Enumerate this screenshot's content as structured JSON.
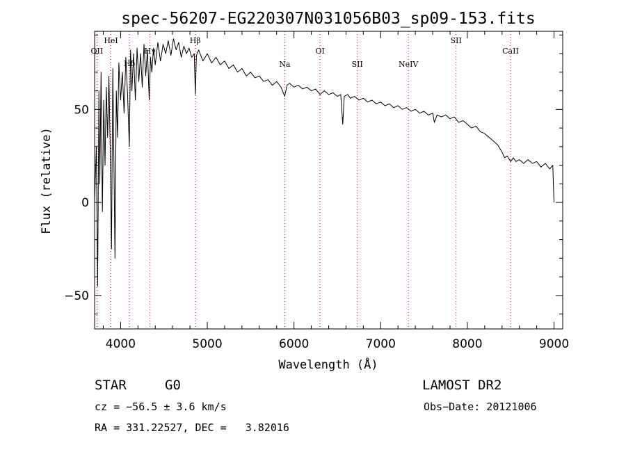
{
  "chart_data": {
    "type": "line",
    "title": "spec-56207-EG220307N031056B03_sp09-153.fits",
    "xlabel": "Wavelength (Å)",
    "ylabel": "Flux (relative)",
    "xlim": [
      3700,
      9100
    ],
    "ylim": [
      -68,
      92
    ],
    "xticks": [
      4000,
      5000,
      6000,
      7000,
      8000,
      9000
    ],
    "yticks": [
      -50,
      0,
      50
    ],
    "grid": false,
    "spectrum": [
      [
        3700,
        0
      ],
      [
        3720,
        30
      ],
      [
        3735,
        -45
      ],
      [
        3750,
        60
      ],
      [
        3760,
        10
      ],
      [
        3775,
        70
      ],
      [
        3790,
        -5
      ],
      [
        3805,
        55
      ],
      [
        3820,
        20
      ],
      [
        3835,
        62
      ],
      [
        3850,
        35
      ],
      [
        3865,
        68
      ],
      [
        3880,
        30
      ],
      [
        3895,
        -25
      ],
      [
        3910,
        72
      ],
      [
        3925,
        15
      ],
      [
        3935,
        -30
      ],
      [
        3950,
        60
      ],
      [
        3965,
        35
      ],
      [
        3980,
        75
      ],
      [
        4000,
        55
      ],
      [
        4020,
        70
      ],
      [
        4040,
        48
      ],
      [
        4060,
        78
      ],
      [
        4080,
        58
      ],
      [
        4100,
        30
      ],
      [
        4115,
        82
      ],
      [
        4130,
        60
      ],
      [
        4150,
        80
      ],
      [
        4170,
        55
      ],
      [
        4190,
        83
      ],
      [
        4210,
        65
      ],
      [
        4230,
        80
      ],
      [
        4250,
        62
      ],
      [
        4270,
        85
      ],
      [
        4290,
        68
      ],
      [
        4310,
        82
      ],
      [
        4330,
        55
      ],
      [
        4345,
        78
      ],
      [
        4360,
        70
      ],
      [
        4380,
        83
      ],
      [
        4400,
        74
      ],
      [
        4430,
        86
      ],
      [
        4460,
        76
      ],
      [
        4490,
        85
      ],
      [
        4520,
        80
      ],
      [
        4550,
        87
      ],
      [
        4580,
        79
      ],
      [
        4610,
        88
      ],
      [
        4640,
        82
      ],
      [
        4670,
        86
      ],
      [
        4700,
        78
      ],
      [
        4730,
        84
      ],
      [
        4760,
        80
      ],
      [
        4790,
        83
      ],
      [
        4820,
        78
      ],
      [
        4850,
        80
      ],
      [
        4862,
        58
      ],
      [
        4875,
        79
      ],
      [
        4900,
        82
      ],
      [
        4950,
        76
      ],
      [
        5000,
        80
      ],
      [
        5050,
        75
      ],
      [
        5100,
        78
      ],
      [
        5150,
        74
      ],
      [
        5200,
        76
      ],
      [
        5250,
        72
      ],
      [
        5300,
        74
      ],
      [
        5350,
        70
      ],
      [
        5400,
        72
      ],
      [
        5450,
        68
      ],
      [
        5500,
        70
      ],
      [
        5550,
        67
      ],
      [
        5600,
        68
      ],
      [
        5650,
        65
      ],
      [
        5700,
        66
      ],
      [
        5750,
        63
      ],
      [
        5800,
        65
      ],
      [
        5850,
        62
      ],
      [
        5893,
        57
      ],
      [
        5920,
        63
      ],
      [
        5950,
        64
      ],
      [
        6000,
        62
      ],
      [
        6050,
        63
      ],
      [
        6100,
        61
      ],
      [
        6150,
        62
      ],
      [
        6200,
        60
      ],
      [
        6250,
        61
      ],
      [
        6300,
        58
      ],
      [
        6350,
        60
      ],
      [
        6400,
        58
      ],
      [
        6450,
        59
      ],
      [
        6500,
        57
      ],
      [
        6540,
        58
      ],
      [
        6563,
        42
      ],
      [
        6580,
        57
      ],
      [
        6620,
        58
      ],
      [
        6650,
        56
      ],
      [
        6700,
        57
      ],
      [
        6750,
        55
      ],
      [
        6800,
        56
      ],
      [
        6850,
        54
      ],
      [
        6900,
        55
      ],
      [
        6950,
        53
      ],
      [
        7000,
        54
      ],
      [
        7050,
        52
      ],
      [
        7100,
        53
      ],
      [
        7150,
        51
      ],
      [
        7200,
        52
      ],
      [
        7250,
        50
      ],
      [
        7300,
        51
      ],
      [
        7350,
        49
      ],
      [
        7400,
        50
      ],
      [
        7450,
        48
      ],
      [
        7500,
        49
      ],
      [
        7550,
        47
      ],
      [
        7600,
        48
      ],
      [
        7620,
        43
      ],
      [
        7650,
        47
      ],
      [
        7700,
        46
      ],
      [
        7750,
        47
      ],
      [
        7800,
        45
      ],
      [
        7850,
        46
      ],
      [
        7900,
        43
      ],
      [
        7950,
        44
      ],
      [
        8000,
        42
      ],
      [
        8050,
        40
      ],
      [
        8100,
        41
      ],
      [
        8150,
        38
      ],
      [
        8200,
        37
      ],
      [
        8250,
        35
      ],
      [
        8300,
        33
      ],
      [
        8350,
        31
      ],
      [
        8400,
        27
      ],
      [
        8430,
        24
      ],
      [
        8460,
        25
      ],
      [
        8500,
        22
      ],
      [
        8530,
        24
      ],
      [
        8560,
        22
      ],
      [
        8600,
        23
      ],
      [
        8650,
        21
      ],
      [
        8700,
        23
      ],
      [
        8750,
        21
      ],
      [
        8800,
        22
      ],
      [
        8850,
        19
      ],
      [
        8900,
        21
      ],
      [
        8950,
        18
      ],
      [
        8985,
        20
      ],
      [
        9000,
        0
      ]
    ],
    "line_markers": [
      {
        "label": "OII",
        "wavelength": 3727,
        "tier": 3
      },
      {
        "label": "HeI",
        "wavelength": 3889,
        "tier": 1
      },
      {
        "label": "Hδ",
        "wavelength": 4102,
        "tier": 5
      },
      {
        "label": "Hγ",
        "wavelength": 4340,
        "tier": 3
      },
      {
        "label": "Hβ",
        "wavelength": 4861,
        "tier": 1
      },
      {
        "label": "Na",
        "wavelength": 5893,
        "tier": 4
      },
      {
        "label": "OI",
        "wavelength": 6300,
        "tier": 2
      },
      {
        "label": "SII",
        "wavelength": 6731,
        "tier": 4
      },
      {
        "label": "NeIV",
        "wavelength": 7320,
        "tier": 4
      },
      {
        "label": "SII",
        "wavelength": 7870,
        "tier": 1
      },
      {
        "label": "CaII",
        "wavelength": 8498,
        "tier": 3
      }
    ],
    "marker_color": "#cc0000"
  },
  "footer": {
    "object_class": "STAR",
    "subclass": "G0",
    "survey": "LAMOST DR2",
    "cz": "cz = −56.5 ± 3.6 km/s",
    "obs_date": "Obs−Date: 20121006",
    "coords": "RA = 331.22527, DEC =   3.82016"
  }
}
